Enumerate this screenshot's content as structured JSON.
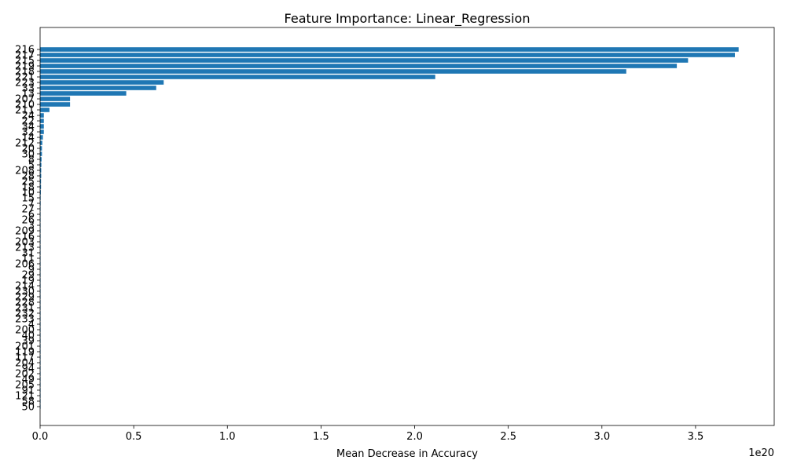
{
  "chart_data": {
    "type": "bar",
    "orientation": "horizontal",
    "title": "Feature Importance: Linear_Regression",
    "xlabel": "Mean Decrease in Accuracy",
    "ylabel": "",
    "x_offset_label": "1e20",
    "xlim": [
      0,
      3.92
    ],
    "x_ticks": [
      "0.0",
      "0.5",
      "1.0",
      "1.5",
      "2.0",
      "2.5",
      "3.0",
      "3.5"
    ],
    "bar_color": "#1f77b4",
    "grid": false,
    "categories": [
      "216",
      "217",
      "215",
      "219",
      "218",
      "221",
      "223",
      "33",
      "13",
      "207",
      "210",
      "211",
      "24",
      "22",
      "34",
      "32",
      "14",
      "212",
      "20",
      "30",
      "8",
      "5",
      "208",
      "28",
      "25",
      "18",
      "10",
      "15",
      "7",
      "27",
      "6",
      "26",
      "3",
      "209",
      "16",
      "203",
      "213",
      "31",
      "11",
      "206",
      "9",
      "29",
      "19",
      "214",
      "230",
      "229",
      "228",
      "231",
      "232",
      "233",
      "4",
      "200",
      "40",
      "39",
      "201",
      "119",
      "117",
      "204",
      "94",
      "202",
      "49",
      "205",
      "91",
      "121",
      "58",
      "50"
    ],
    "values": [
      3.73,
      3.71,
      3.46,
      3.4,
      3.13,
      2.11,
      0.66,
      0.62,
      0.46,
      0.16,
      0.16,
      0.05,
      0.02,
      0.02,
      0.02,
      0.02,
      0.015,
      0.012,
      0.01,
      0.01,
      0.008,
      0.007,
      0.006,
      0.006,
      0.005,
      0.005,
      0.004,
      0.003,
      0.003,
      0.002,
      0.002,
      0.002,
      0.001,
      0.001,
      0.001,
      0.001,
      0.001,
      0.001,
      0.001,
      0.001,
      0.001,
      0.001,
      0.0008,
      0.0008,
      0.0006,
      0.0006,
      0.0006,
      0.0006,
      0.0006,
      0.0006,
      0.0005,
      0.0005,
      0.0005,
      0.0004,
      0.0004,
      0.0004,
      0.0004,
      0.0004,
      0.0003,
      0.0003,
      0.0003,
      0.0003,
      0.0002,
      0.0002,
      0.0001,
      0.0001
    ]
  }
}
